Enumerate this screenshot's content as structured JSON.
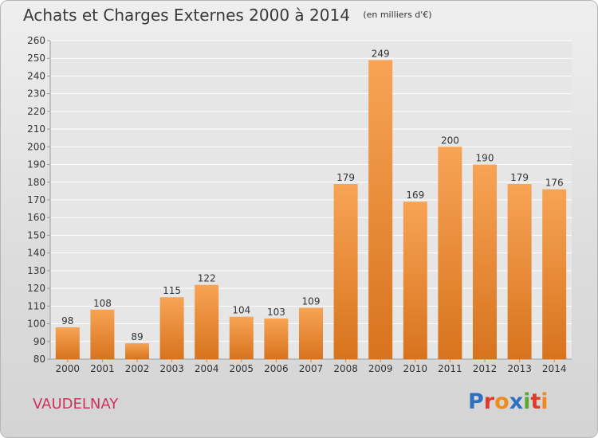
{
  "header": {
    "title": "Achats et Charges Externes 2000 à 2014",
    "unit": "(en milliers d'€)"
  },
  "commune": "VAUDELNAY",
  "logo": {
    "text": "Proxiti",
    "letters": [
      {
        "ch": "P",
        "color": "#2f6fc1"
      },
      {
        "ch": "r",
        "color": "#e2392b"
      },
      {
        "ch": "o",
        "color": "#f08a1d"
      },
      {
        "ch": "x",
        "color": "#2f6fc1"
      },
      {
        "ch": "i",
        "color": "#5aa832"
      },
      {
        "ch": "t",
        "color": "#e2392b"
      },
      {
        "ch": "i",
        "color": "#f08a1d"
      }
    ]
  },
  "colors": {
    "bar_top": "#f7a455",
    "bar_bottom": "#d8731d",
    "grid": "#ffffff",
    "axis_text": "#333333",
    "title": "#3a3a3a",
    "commune": "#d0315e"
  },
  "chart_data": {
    "type": "bar",
    "title": "Achats et Charges Externes 2000 à 2014",
    "subtitle": "(en milliers d'€)",
    "xlabel": "",
    "ylabel": "",
    "categories": [
      "2000",
      "2001",
      "2002",
      "2003",
      "2004",
      "2005",
      "2006",
      "2007",
      "2008",
      "2009",
      "2010",
      "2011",
      "2012",
      "2013",
      "2014"
    ],
    "values": [
      98,
      108,
      89,
      115,
      122,
      104,
      103,
      109,
      179,
      249,
      169,
      200,
      190,
      179,
      176
    ],
    "ylim": [
      80,
      260
    ],
    "ytick_step": 10,
    "grid": true,
    "data_labels": true
  }
}
